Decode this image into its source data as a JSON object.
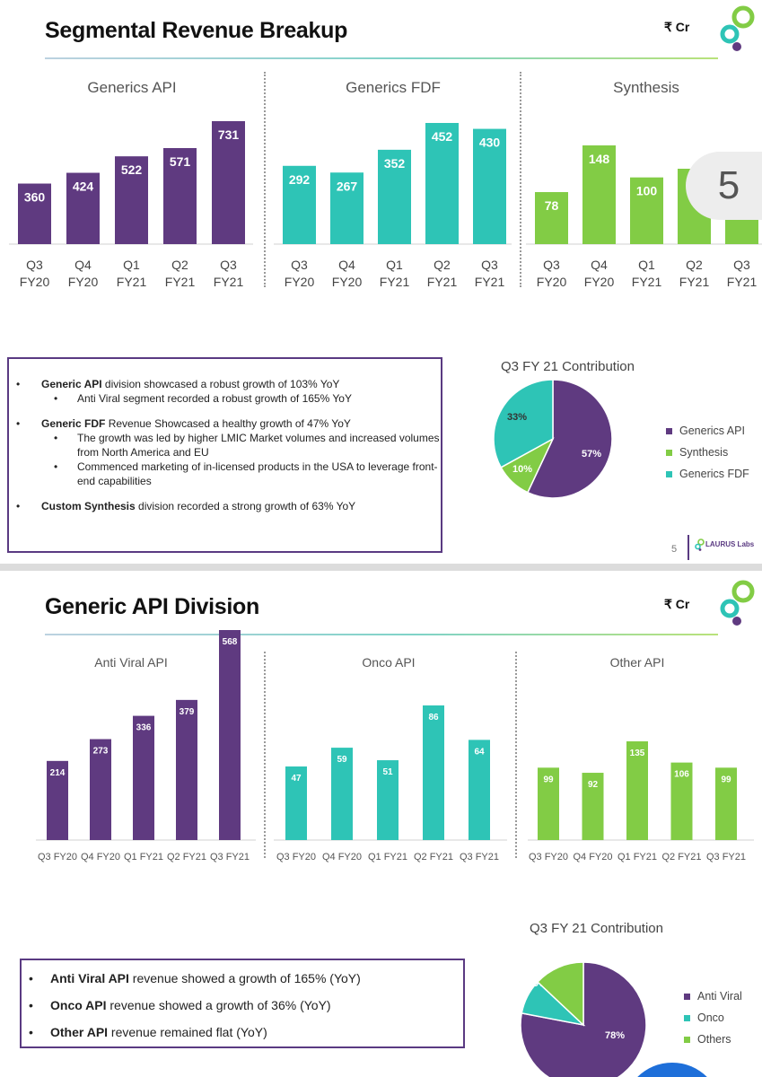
{
  "slide1": {
    "title": "Segmental Revenue Breakup",
    "unit": "₹ Cr",
    "page_number": "5",
    "overlay_number": "5",
    "brand": "LAURUS Labs",
    "pie_title": "Q3 FY 21 Contribution",
    "bullets": [
      {
        "bold": "Generic API",
        "text": " division showcased a robust growth of 103% YoY",
        "sub": [
          "Anti Viral segment recorded a robust growth of 165% YoY"
        ]
      },
      {
        "bold": "Generic FDF",
        "text": " Revenue Showcased a healthy growth of 47% YoY",
        "sub": [
          "The growth was led by higher LMIC Market volumes and increased volumes from North America and EU",
          "Commenced marketing of in-licensed products in the USA to leverage front-end capabilities"
        ]
      },
      {
        "bold": "Custom Synthesis",
        "text": " division recorded a strong growth of 63% YoY",
        "sub": []
      }
    ]
  },
  "slide2": {
    "title": "Generic API Division",
    "unit": "₹ Cr",
    "pie_title": "Q3 FY 21 Contribution",
    "bullets": [
      {
        "bold": "Anti Viral API",
        "text": " revenue showed a growth of 165%  (YoY)"
      },
      {
        "bold": "Onco API",
        "text": " revenue showed a growth of 36% (YoY)"
      },
      {
        "bold": "Other API",
        "text": " revenue remained flat (YoY)"
      }
    ]
  },
  "colors": {
    "purple": "#5f3a80",
    "teal": "#2ec4b6",
    "green": "#82cc45",
    "accent_border": "#5a3a82"
  },
  "chart_data": [
    {
      "type": "bar",
      "title": "Generics API",
      "categories": [
        "Q3\nFY20",
        "Q4\nFY20",
        "Q1\nFY21",
        "Q2\nFY21",
        "Q3\nFY21"
      ],
      "values": [
        360,
        424,
        522,
        571,
        731
      ],
      "color": "#5f3a80"
    },
    {
      "type": "bar",
      "title": "Generics FDF",
      "categories": [
        "Q3\nFY20",
        "Q4\nFY20",
        "Q1\nFY21",
        "Q2\nFY21",
        "Q3\nFY21"
      ],
      "values": [
        292,
        267,
        352,
        452,
        430
      ],
      "color": "#2ec4b6"
    },
    {
      "type": "bar",
      "title": "Synthesis",
      "categories": [
        "Q3\nFY20",
        "Q4\nFY20",
        "Q1\nFY21",
        "Q2\nFY21",
        "Q3\nFY21"
      ],
      "values": [
        78,
        148,
        100,
        null,
        null
      ],
      "color": "#82cc45"
    },
    {
      "type": "pie",
      "title": "Q3 FY 21 Contribution",
      "labels": [
        "Generics API",
        "Synthesis",
        "Generics FDF"
      ],
      "values": [
        57,
        10,
        33
      ],
      "colors": [
        "#5f3a80",
        "#82cc45",
        "#2ec4b6"
      ],
      "legend": "right"
    },
    {
      "type": "bar",
      "title": "Anti Viral API",
      "categories": [
        "Q3 FY20",
        "Q4 FY20",
        "Q1 FY21",
        "Q2 FY21",
        "Q3 FY21"
      ],
      "values": [
        214,
        273,
        336,
        379,
        568
      ],
      "color": "#5f3a80"
    },
    {
      "type": "bar",
      "title": "Onco API",
      "categories": [
        "Q3 FY20",
        "Q4 FY20",
        "Q1 FY21",
        "Q2 FY21",
        "Q3 FY21"
      ],
      "values": [
        47,
        59,
        51,
        86,
        64
      ],
      "color": "#2ec4b6"
    },
    {
      "type": "bar",
      "title": "Other API",
      "categories": [
        "Q3 FY20",
        "Q4 FY20",
        "Q1 FY21",
        "Q2 FY21",
        "Q3 FY21"
      ],
      "values": [
        99,
        92,
        135,
        106,
        99
      ],
      "color": "#82cc45"
    },
    {
      "type": "pie",
      "title": "Q3 FY 21 Contribution",
      "labels": [
        "Anti Viral",
        "Onco",
        "Others"
      ],
      "values": [
        78,
        9,
        13
      ],
      "colors": [
        "#5f3a80",
        "#2ec4b6",
        "#82cc45"
      ],
      "legend": "right"
    }
  ]
}
